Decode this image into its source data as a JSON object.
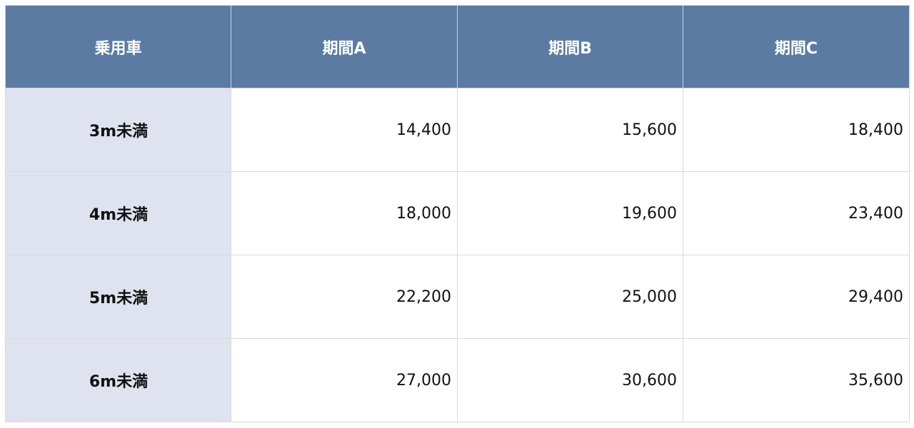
{
  "table": {
    "header": [
      "乗用車",
      "期間A",
      "期間B",
      "期間C"
    ],
    "rows": [
      [
        "3m未満",
        "14,400",
        "15,600",
        "18,400"
      ],
      [
        "4m未満",
        "18,000",
        "19,600",
        "23,400"
      ],
      [
        "5m未満",
        "22,200",
        "25,000",
        "29,400"
      ],
      [
        "6m未満",
        "27,000",
        "30,600",
        "35,600"
      ]
    ]
  }
}
